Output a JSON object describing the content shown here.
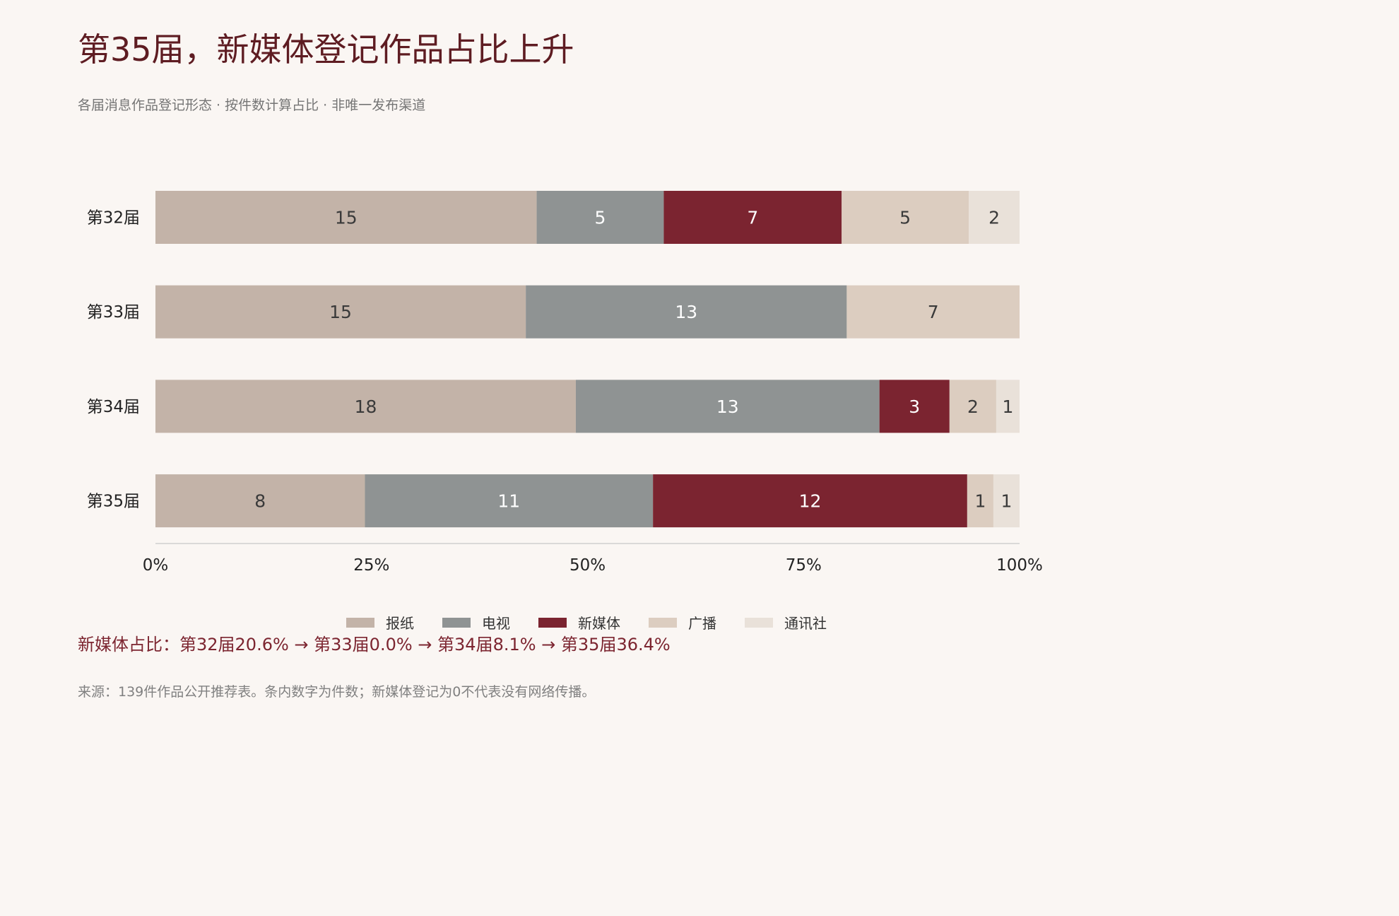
{
  "title": "第35届，新媒体登记作品占比上升",
  "subtitle": "各届消息作品登记形态 · 按件数计算占比 · 非唯一发布渠道",
  "summary": "新媒体占比：第32届20.6% → 第33届0.0% → 第34届8.1% → 第35届36.4%",
  "source": "来源：139件作品公开推荐表。条内数字为件数；新媒体登记为0不代表没有网络传播。",
  "chart_data": {
    "type": "bar",
    "orientation": "horizontal",
    "stacked": "percent",
    "categories": [
      "第32届",
      "第33届",
      "第34届",
      "第35届"
    ],
    "series": [
      {
        "name": "报纸",
        "color": "#c3b3a8",
        "label_color": "#3a3a3a",
        "values": [
          15,
          15,
          18,
          8
        ]
      },
      {
        "name": "电视",
        "color": "#8f9393",
        "label_color": "#ffffff",
        "values": [
          5,
          13,
          13,
          11
        ]
      },
      {
        "name": "新媒体",
        "color": "#7b2430",
        "label_color": "#ffffff",
        "values": [
          7,
          0,
          3,
          12
        ]
      },
      {
        "name": "广播",
        "color": "#dccdc0",
        "label_color": "#3a3a3a",
        "values": [
          5,
          7,
          2,
          1
        ]
      },
      {
        "name": "通讯社",
        "color": "#e9e1d9",
        "label_color": "#3a3a3a",
        "values": [
          2,
          0,
          1,
          1
        ]
      }
    ],
    "x_ticks": [
      "0%",
      "25%",
      "50%",
      "75%",
      "100%"
    ],
    "xlim": [
      0,
      100
    ],
    "legend_position": "bottom",
    "grid": false
  }
}
